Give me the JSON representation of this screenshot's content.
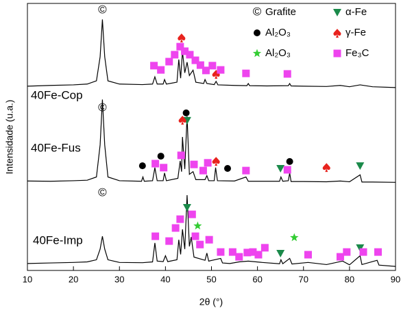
{
  "chart_data": {
    "type": "line",
    "x_label": "2θ (°)",
    "y_label": "Intensidade (u.a.)",
    "xlim": [
      10,
      90
    ],
    "xticks": [
      10,
      20,
      30,
      40,
      50,
      60,
      70,
      80,
      90
    ],
    "ylim": [
      0,
      100
    ],
    "annotations": [
      "40Fe-Cop",
      "40Fe-Fus",
      "40Fe-Imp"
    ],
    "series": [
      {
        "color": "#000000",
        "x": [
          10,
          15,
          20,
          23,
          25,
          25.8,
          26.3,
          26.8,
          27.5,
          30,
          35,
          37.2,
          37.7,
          38.2,
          39.5,
          39.8,
          40.2,
          42.5,
          42.9,
          43.3,
          43.7,
          44.2,
          44.7,
          45.2,
          46,
          46.6,
          48.3,
          48.6,
          49,
          50.6,
          51,
          51.4,
          55,
          57.7,
          58,
          58.3,
          62,
          66.7,
          67,
          67.3,
          70,
          75,
          78,
          80,
          82.3,
          85,
          90
        ],
        "values": [
          69,
          69.3,
          69.5,
          69.8,
          71,
          80,
          94,
          80,
          71,
          69.8,
          69.6,
          69.8,
          72.5,
          69.8,
          69.8,
          71.5,
          69.8,
          70.5,
          79,
          72,
          82,
          74,
          78,
          73,
          75,
          70.5,
          70,
          71.5,
          70,
          69.6,
          70.8,
          69.5,
          69.3,
          69.2,
          70,
          69.2,
          69.1,
          69.2,
          70,
          69.1,
          69,
          68.9,
          69.3,
          68.8,
          69.5,
          68.8,
          68.5
        ]
      },
      {
        "color": "#000000",
        "x": [
          10,
          15,
          20,
          23,
          25,
          25.8,
          26.3,
          26.8,
          27.5,
          30,
          34.8,
          35.1,
          35.4,
          37.2,
          37.7,
          38.2,
          39.5,
          39.8,
          40.2,
          42.7,
          43.2,
          43.5,
          43.7,
          44.2,
          44.7,
          45.2,
          46,
          46.6,
          48.6,
          49,
          49.4,
          50.6,
          50.9,
          51.3,
          55,
          57.5,
          58,
          62,
          64.8,
          65.1,
          65.5,
          66.7,
          67,
          67.3,
          70,
          75,
          78,
          80,
          82.3,
          82.7,
          85,
          90
        ],
        "values": [
          33.5,
          33.4,
          33.6,
          33.8,
          35,
          47,
          64,
          47,
          35,
          33.6,
          33.4,
          35,
          33.4,
          33.6,
          38.5,
          33.6,
          33.6,
          36.5,
          33.6,
          34.5,
          41,
          37,
          50,
          38,
          57.7,
          36,
          37,
          34,
          34,
          35.5,
          33.6,
          33.6,
          38.5,
          33.6,
          33.5,
          35,
          33.4,
          33.4,
          33.4,
          35,
          33.4,
          33.6,
          36.5,
          33.3,
          33.3,
          33.2,
          33.5,
          33.2,
          35.8,
          33.1,
          33.1,
          33
        ]
      },
      {
        "color": "#000000",
        "x": [
          10,
          15,
          20,
          23,
          25,
          25.8,
          26.3,
          26.8,
          27.5,
          30,
          35,
          37.2,
          37.7,
          38.2,
          39.5,
          40,
          40.5,
          42.5,
          42.9,
          43.3,
          43.7,
          44.2,
          44.7,
          45.2,
          45.6,
          46.2,
          48.6,
          49,
          49.4,
          52,
          52.4,
          54,
          56,
          58,
          61,
          64.8,
          65.1,
          65.5,
          67,
          67.5,
          71,
          75,
          78.5,
          80,
          82.3,
          82.7,
          86,
          86.4,
          90
        ],
        "values": [
          2.6,
          2.8,
          3,
          3.2,
          4,
          8,
          12.8,
          8,
          4,
          3,
          2.9,
          3.2,
          10.3,
          3.5,
          3.3,
          5.5,
          3.3,
          4,
          11.5,
          6,
          15.4,
          8,
          28.2,
          9,
          12.5,
          5,
          3.8,
          6.5,
          3.5,
          4.5,
          2.8,
          2.6,
          3.2,
          3.5,
          3,
          2.5,
          4,
          2.5,
          4.5,
          2.4,
          3,
          2.2,
          3.5,
          2.1,
          5.5,
          2.2,
          3.8,
          2,
          1.5
        ]
      }
    ],
    "markers": [
      {
        "name": "Grafite",
        "marker": "©",
        "color": "#000000",
        "x": [
          26.3,
          26.3,
          26.3
        ],
        "values": [
          97.4,
          60.8,
          29
        ]
      },
      {
        "name": "Al₂O₃",
        "marker": "circle",
        "color": "#000000",
        "x": [
          44.5,
          35,
          39,
          53.5,
          67
        ],
        "values": [
          59,
          39.2,
          42.8,
          38.2,
          40.8
        ]
      },
      {
        "name": "Al₂O₃",
        "marker": "star",
        "color": "#33cc33",
        "x": [
          47,
          68
        ],
        "values": [
          16.7,
          12.3
        ]
      },
      {
        "name": "α-Fe",
        "marker": "triangle",
        "color": "#1a8a4a",
        "x": [
          44.7,
          65,
          82.3,
          44.7,
          65,
          82.3
        ],
        "values": [
          56.2,
          38.2,
          39.2,
          23.6,
          6.4,
          8.5
        ]
      },
      {
        "name": "γ-Fe",
        "marker": "spade",
        "color": "#e8231e",
        "x": [
          43.5,
          51,
          43.7,
          51,
          75
        ],
        "values": [
          87.2,
          73.6,
          56.4,
          41,
          38.7
        ]
      },
      {
        "name": "Fe₃C",
        "marker": "square",
        "color": "#ee44ee",
        "x": [
          37.5,
          39,
          40.8,
          42,
          43.2,
          44.2,
          45.3,
          46.5,
          47.6,
          48.8,
          50.2,
          52,
          57.5,
          66.5,
          37.8,
          39.6,
          43.4,
          46.2,
          48.2,
          49.2,
          57.5,
          66.5,
          37.8,
          40.8,
          42.2,
          43.2,
          45.8,
          46.5,
          47.5,
          49.5,
          52,
          54.6,
          56,
          57.8,
          59,
          60.2,
          61.6,
          71,
          78,
          79.4,
          83,
          86.2
        ],
        "values": [
          76.7,
          75.1,
          78.2,
          80.8,
          83.8,
          82.1,
          80.8,
          78.7,
          76.9,
          74.9,
          76.7,
          75.1,
          73.8,
          73.6,
          40,
          38.5,
          43.1,
          39.7,
          37.4,
          40.3,
          37.4,
          37.7,
          12.8,
          11,
          15.9,
          19.2,
          21,
          12.8,
          9.7,
          11.5,
          6.9,
          6.9,
          5.1,
          6.7,
          6.9,
          5.9,
          8.5,
          5.9,
          5.1,
          6.9,
          6.9,
          6.9
        ]
      }
    ]
  }
}
